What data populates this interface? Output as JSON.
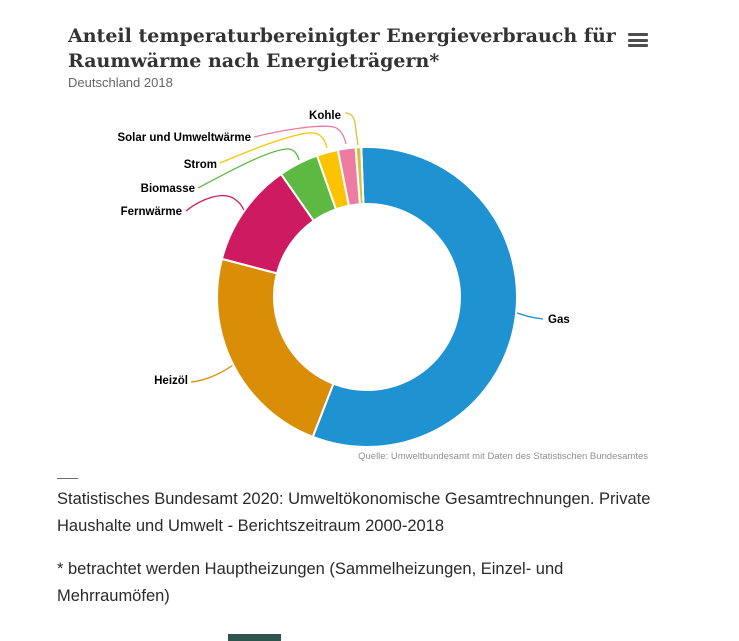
{
  "header": {
    "title_line1": "Anteil temperaturbereinigter Energieverbrauch für",
    "title_line2": "Raumwärme nach Energieträgern*",
    "subtitle": "Deutschland 2018",
    "menu_icon": "hamburger-icon"
  },
  "chart_data": {
    "type": "pie",
    "variant": "donut",
    "title": "Anteil temperaturbereinigter Energieverbrauch für Raumwärme nach Energieträgern*",
    "subtitle": "Deutschland 2018",
    "unit": "percent",
    "value_labels_shown": false,
    "values_estimated_from_arc_angles": true,
    "start_angle_deg": -2.2,
    "legend_position": "callout-labels",
    "segments": [
      {
        "label": "Gas",
        "value": 56.5,
        "color": "#1f92d1"
      },
      {
        "label": "Heizöl",
        "value": 23.2,
        "color": "#da8e08"
      },
      {
        "label": "Fernwärme",
        "value": 11.2,
        "color": "#ce1a60"
      },
      {
        "label": "Biomasse",
        "value": 4.3,
        "color": "#5eb942"
      },
      {
        "label": "Strom",
        "value": 2.3,
        "color": "#fcc300"
      },
      {
        "label": "Solar und Umweltwärme",
        "value": 1.9,
        "color": "#ee7ba2"
      },
      {
        "label": "Kohle",
        "value": 0.6,
        "color": "#d6c33c"
      }
    ],
    "source": "Quelle: Umweltbundesamt mit Daten des Statistischen Bundesamtes"
  },
  "footer": {
    "reference": "Statistisches Bundesamt 2020: Umweltökonomische Gesamtrechnungen. Private Haushalte und Umwelt - Berichtszeitraum 2000-2018",
    "footnote": "* betrachtet werden Hauptheizungen (Sammelheizungen, Einzel- und Mehrraumöfen)"
  }
}
